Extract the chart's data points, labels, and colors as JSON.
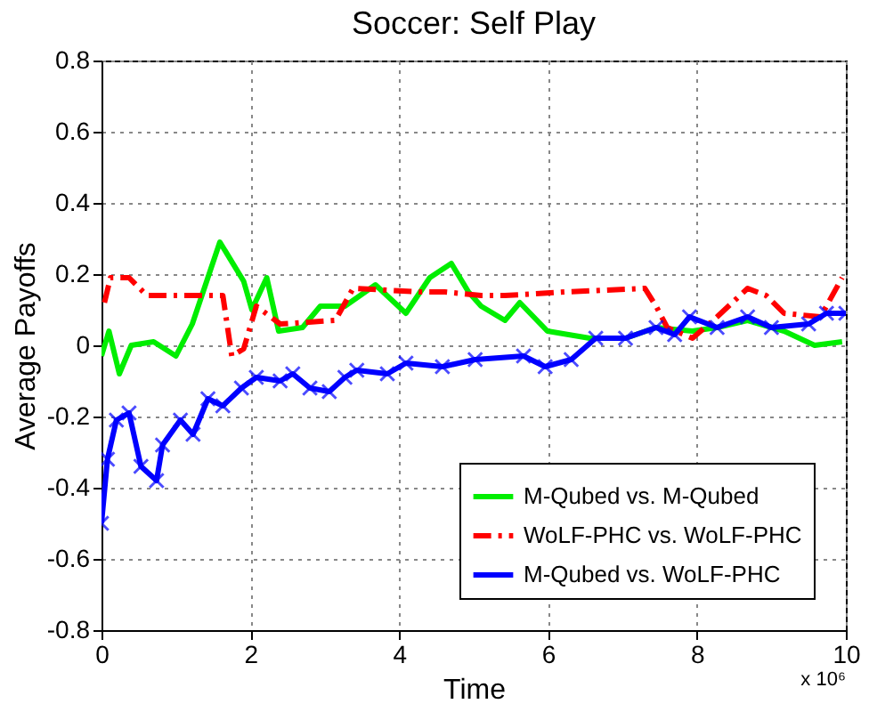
{
  "chart_data": {
    "type": "line",
    "title": "Soccer: Self Play",
    "xlabel": "Time",
    "ylabel": "Average Payoffs",
    "xlim": [
      0,
      10
    ],
    "xticks": [
      0,
      2,
      4,
      6,
      8,
      10
    ],
    "ylim": [
      -0.8,
      0.8
    ],
    "yticks": [
      -0.8,
      -0.6,
      -0.4,
      -0.2,
      {
        "value": 0,
        "label": "0"
      },
      0.2,
      0.4,
      0.6,
      0.8
    ],
    "grid": true,
    "legend": "bottom right",
    "annotations": [
      "x 10⁶"
    ],
    "series": [
      {
        "name": "M-Qubed vs. M-Qubed",
        "color": "#00ee00",
        "line_style": "solid",
        "marker": "none",
        "x": [
          0,
          0.1,
          0.24,
          0.4,
          0.7,
          1.0,
          1.22,
          1.59,
          1.91,
          2.02,
          2.22,
          2.38,
          2.7,
          2.94,
          3.27,
          3.68,
          4.09,
          4.41,
          4.7,
          4.93,
          5.1,
          5.42,
          5.62,
          5.99,
          6.56,
          7.04,
          7.45,
          7.94,
          8.27,
          8.68,
          9.17,
          9.58,
          9.95
        ],
        "values": [
          -0.03,
          0.04,
          -0.08,
          0.0,
          0.01,
          -0.03,
          0.06,
          0.29,
          0.18,
          0.1,
          0.19,
          0.04,
          0.05,
          0.11,
          0.11,
          0.17,
          0.09,
          0.19,
          0.23,
          0.15,
          0.11,
          0.07,
          0.12,
          0.04,
          0.02,
          0.02,
          0.05,
          0.04,
          0.05,
          0.07,
          0.04,
          0.0,
          0.01
        ]
      },
      {
        "name": "WoLF-PHC vs. WoLF-PHC",
        "color": "#ff0000",
        "line_style": "dashed",
        "marker": "none",
        "x": [
          0.04,
          0.12,
          0.37,
          0.61,
          1.02,
          1.35,
          1.63,
          1.75,
          1.91,
          2.08,
          2.4,
          3.14,
          3.38,
          4.28,
          4.61,
          5.1,
          5.42,
          6.24,
          7.3,
          7.45,
          7.6,
          7.94,
          8.27,
          8.68,
          8.93,
          9.17,
          9.66,
          9.95
        ],
        "values": [
          0.12,
          0.19,
          0.19,
          0.14,
          0.14,
          0.14,
          0.14,
          -0.03,
          -0.01,
          0.11,
          0.06,
          0.07,
          0.16,
          0.15,
          0.15,
          0.14,
          0.14,
          0.15,
          0.16,
          0.11,
          0.05,
          0.02,
          0.08,
          0.16,
          0.14,
          0.09,
          0.08,
          0.19
        ]
      },
      {
        "name": "M-Qubed vs. WoLF-PHC",
        "color": "#0000ff",
        "line_style": "solid",
        "marker": "cross",
        "x": [
          0,
          0.08,
          0.2,
          0.37,
          0.53,
          0.74,
          0.82,
          1.06,
          1.23,
          1.43,
          1.63,
          1.88,
          2.08,
          2.4,
          2.57,
          2.8,
          3.06,
          3.27,
          3.43,
          3.84,
          4.09,
          4.58,
          5.02,
          5.67,
          5.96,
          6.31,
          6.64,
          7.04,
          7.45,
          7.7,
          7.9,
          8.27,
          8.68,
          9.0,
          9.5,
          9.74,
          10
        ],
        "values": [
          -0.5,
          -0.32,
          -0.21,
          -0.19,
          -0.34,
          -0.38,
          -0.28,
          -0.21,
          -0.25,
          -0.15,
          -0.17,
          -0.12,
          -0.09,
          -0.1,
          -0.08,
          -0.12,
          -0.13,
          -0.09,
          -0.07,
          -0.08,
          -0.05,
          -0.06,
          -0.04,
          -0.03,
          -0.06,
          -0.04,
          0.02,
          0.02,
          0.05,
          0.03,
          0.08,
          0.05,
          0.08,
          0.05,
          0.06,
          0.09,
          0.09
        ]
      }
    ]
  }
}
